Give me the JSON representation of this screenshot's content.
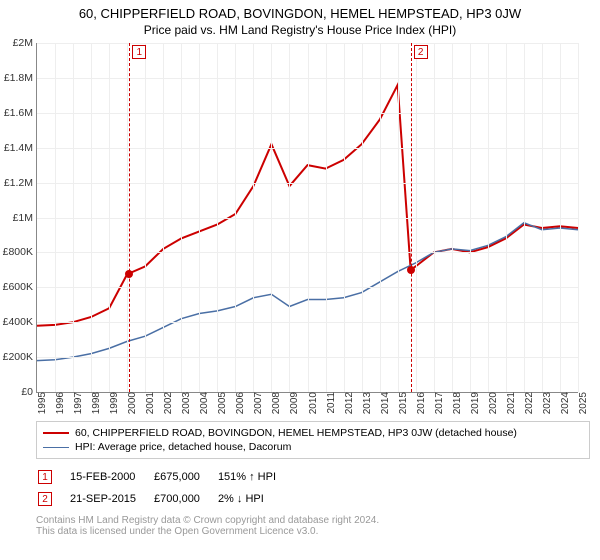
{
  "title": "60, CHIPPERFIELD ROAD, BOVINGDON, HEMEL HEMPSTEAD, HP3 0JW",
  "subtitle": "Price paid vs. HM Land Registry's House Price Index (HPI)",
  "chart": {
    "type": "line",
    "x": {
      "min": 1995,
      "max": 2025,
      "tick_step": 1
    },
    "y": {
      "min": 0,
      "max": 2000000,
      "tick_step": 200000,
      "tick_labels": [
        "£0",
        "£200K",
        "£400K",
        "£600K",
        "£800K",
        "£1M",
        "£1.2M",
        "£1.4M",
        "£1.6M",
        "£1.8M",
        "£2M"
      ]
    },
    "colors": {
      "grid": "#eeeeee",
      "axis": "#888888",
      "series1": "#cc0000",
      "series2": "#4a6fa5",
      "ref_line": "#cc0000",
      "background": "#ffffff"
    },
    "series": [
      {
        "name": "property",
        "color": "#cc0000",
        "line_width": 2,
        "points": [
          [
            1995,
            380000
          ],
          [
            1996,
            385000
          ],
          [
            1997,
            400000
          ],
          [
            1998,
            430000
          ],
          [
            1999,
            480000
          ],
          [
            2000,
            675000
          ],
          [
            2001,
            720000
          ],
          [
            2002,
            820000
          ],
          [
            2003,
            880000
          ],
          [
            2004,
            920000
          ],
          [
            2005,
            960000
          ],
          [
            2006,
            1020000
          ],
          [
            2007,
            1180000
          ],
          [
            2008,
            1420000
          ],
          [
            2009,
            1180000
          ],
          [
            2010,
            1300000
          ],
          [
            2011,
            1280000
          ],
          [
            2012,
            1330000
          ],
          [
            2013,
            1420000
          ],
          [
            2014,
            1560000
          ],
          [
            2015,
            1760000
          ],
          [
            2015.72,
            700000
          ],
          [
            2016,
            720000
          ],
          [
            2017,
            800000
          ],
          [
            2018,
            820000
          ],
          [
            2019,
            800000
          ],
          [
            2020,
            830000
          ],
          [
            2021,
            880000
          ],
          [
            2022,
            960000
          ],
          [
            2023,
            940000
          ],
          [
            2024,
            950000
          ],
          [
            2025,
            940000
          ]
        ]
      },
      {
        "name": "hpi",
        "color": "#4a6fa5",
        "line_width": 1.5,
        "points": [
          [
            1995,
            180000
          ],
          [
            1996,
            185000
          ],
          [
            1997,
            200000
          ],
          [
            1998,
            220000
          ],
          [
            1999,
            250000
          ],
          [
            2000,
            290000
          ],
          [
            2001,
            320000
          ],
          [
            2002,
            370000
          ],
          [
            2003,
            420000
          ],
          [
            2004,
            450000
          ],
          [
            2005,
            465000
          ],
          [
            2006,
            490000
          ],
          [
            2007,
            540000
          ],
          [
            2008,
            560000
          ],
          [
            2009,
            490000
          ],
          [
            2010,
            530000
          ],
          [
            2011,
            530000
          ],
          [
            2012,
            540000
          ],
          [
            2013,
            570000
          ],
          [
            2014,
            630000
          ],
          [
            2015,
            690000
          ],
          [
            2016,
            740000
          ],
          [
            2017,
            800000
          ],
          [
            2018,
            820000
          ],
          [
            2019,
            810000
          ],
          [
            2020,
            840000
          ],
          [
            2021,
            890000
          ],
          [
            2022,
            970000
          ],
          [
            2023,
            930000
          ],
          [
            2024,
            940000
          ],
          [
            2025,
            930000
          ]
        ]
      }
    ],
    "markers": [
      {
        "n": "1",
        "x": 2000.12,
        "y": 675000,
        "color": "#cc0000"
      },
      {
        "n": "2",
        "x": 2015.72,
        "y": 700000,
        "color": "#cc0000"
      }
    ]
  },
  "legend": [
    {
      "color": "#cc0000",
      "width": 2,
      "label": "60, CHIPPERFIELD ROAD, BOVINGDON, HEMEL HEMPSTEAD, HP3 0JW (detached house)"
    },
    {
      "color": "#4a6fa5",
      "width": 1.5,
      "label": "HPI: Average price, detached house, Dacorum"
    }
  ],
  "transactions": [
    {
      "n": "1",
      "color": "#cc0000",
      "date": "15-FEB-2000",
      "price": "£675,000",
      "delta": "151% ↑ HPI"
    },
    {
      "n": "2",
      "color": "#cc0000",
      "date": "21-SEP-2015",
      "price": "£700,000",
      "delta": "2% ↓ HPI"
    }
  ],
  "footer": {
    "line1": "Contains HM Land Registry data © Crown copyright and database right 2024.",
    "line2": "This data is licensed under the Open Government Licence v3.0."
  }
}
